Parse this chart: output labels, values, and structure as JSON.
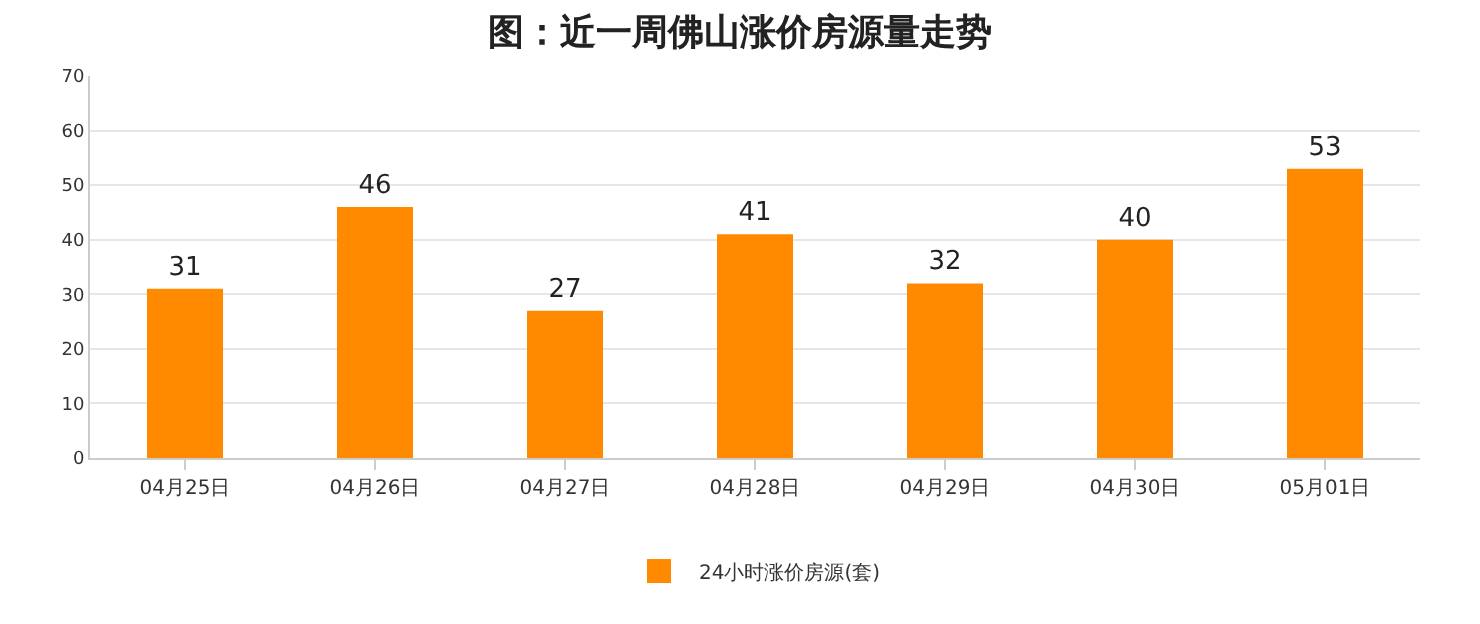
{
  "chart_data": {
    "type": "bar",
    "title": "图：近一周佛山涨价房源量走势",
    "categories": [
      "04月25日",
      "04月26日",
      "04月27日",
      "04月28日",
      "04月29日",
      "04月30日",
      "05月01日"
    ],
    "series": [
      {
        "name": "24小时涨价房源(套)",
        "color": "#ff8a00",
        "values": [
          31,
          46,
          27,
          41,
          32,
          40,
          53
        ]
      }
    ],
    "ylim": [
      0,
      70
    ],
    "yticks": [
      0,
      10,
      20,
      30,
      40,
      50,
      60,
      70
    ],
    "grid": "y",
    "legend": "bottom",
    "data_labels": true
  }
}
